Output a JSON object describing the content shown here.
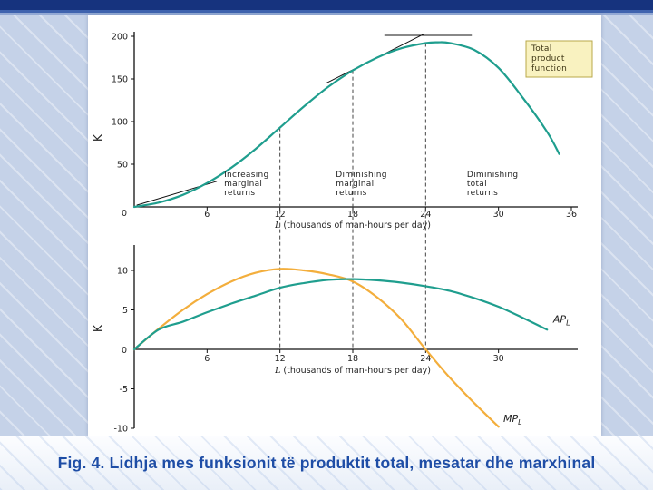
{
  "slide": {
    "caption": "Fig. 4. Lidhja mes funksionit të produktit total, mesatar dhe marxhinal",
    "caption_color": "#1e4da6"
  },
  "chart_data": [
    {
      "type": "line",
      "title": "",
      "xlabel": "L (thousands of man-hours per day)",
      "ylabel": "K",
      "xlim": [
        0,
        36
      ],
      "ylim": [
        0,
        200
      ],
      "xticks": [
        6,
        12,
        18,
        24,
        30,
        36
      ],
      "yticks": [
        50,
        100,
        150,
        200
      ],
      "origin_label": "0",
      "series": [
        {
          "name": "Total product function",
          "name_lines": [
            "Total",
            "product",
            "function"
          ],
          "color": "#1f9e8e",
          "x": [
            0,
            2,
            4,
            6,
            8,
            10,
            12,
            14,
            16,
            18,
            20,
            22,
            24,
            25,
            26,
            28,
            30,
            32,
            34,
            35
          ],
          "y": [
            0,
            5,
            14,
            28,
            46,
            68,
            93,
            118,
            141,
            160,
            175,
            186,
            192,
            193,
            192,
            184,
            163,
            128,
            88,
            62
          ]
        }
      ],
      "guide_x": [
        12,
        18,
        24
      ],
      "tangent_segments": [
        [
          0.2,
          2,
          6.8,
          30
        ],
        [
          15.8,
          145,
          23.9,
          203
        ],
        [
          20.6,
          201,
          27.8,
          201
        ]
      ],
      "annotations": [
        {
          "x": 7.4,
          "lines": [
            "Increasing",
            "marginal",
            "returns"
          ]
        },
        {
          "x": 16.6,
          "lines": [
            "Diminishing",
            "marginal",
            "returns"
          ]
        },
        {
          "x": 27.4,
          "lines": [
            "Diminishing",
            "total",
            "returns"
          ]
        }
      ],
      "legend_box": {
        "lines": [
          "Total",
          "product",
          "function"
        ],
        "bg": "#f9f2c0",
        "border": "#b9a84a"
      }
    },
    {
      "type": "line",
      "title": "",
      "xlabel": "L (thousands of man-hours per day)",
      "ylabel": "K",
      "xlim": [
        0,
        36
      ],
      "ylim": [
        -10,
        10
      ],
      "xticks": [
        6,
        12,
        18,
        24,
        30
      ],
      "yticks": [
        10,
        5,
        -5,
        -10
      ],
      "origin_label": "0",
      "series": [
        {
          "name": "MPL",
          "label": {
            "main": "MP",
            "sub": "L"
          },
          "label_pos": [
            30.4,
            -9.2
          ],
          "color": "#f3ae3c",
          "x": [
            0,
            2,
            4,
            6,
            8,
            10,
            12,
            14,
            16,
            18,
            20,
            22,
            24,
            26,
            28,
            30
          ],
          "y": [
            0,
            2.6,
            5,
            7,
            8.6,
            9.7,
            10.2,
            10,
            9.5,
            8.6,
            6.6,
            3.8,
            0,
            -3.6,
            -6.8,
            -9.8
          ]
        },
        {
          "name": "APL",
          "label": {
            "main": "AP",
            "sub": "L"
          },
          "label_pos": [
            34.5,
            3.4
          ],
          "color": "#1f9e8e",
          "x": [
            0,
            2,
            4,
            6,
            8,
            10,
            12,
            14,
            16,
            18,
            20,
            22,
            24,
            26,
            28,
            30,
            32,
            34
          ],
          "y": [
            0,
            2.5,
            3.5,
            4.7,
            5.8,
            6.8,
            7.8,
            8.4,
            8.8,
            8.9,
            8.75,
            8.45,
            8,
            7.4,
            6.5,
            5.4,
            4,
            2.5
          ]
        }
      ]
    }
  ]
}
